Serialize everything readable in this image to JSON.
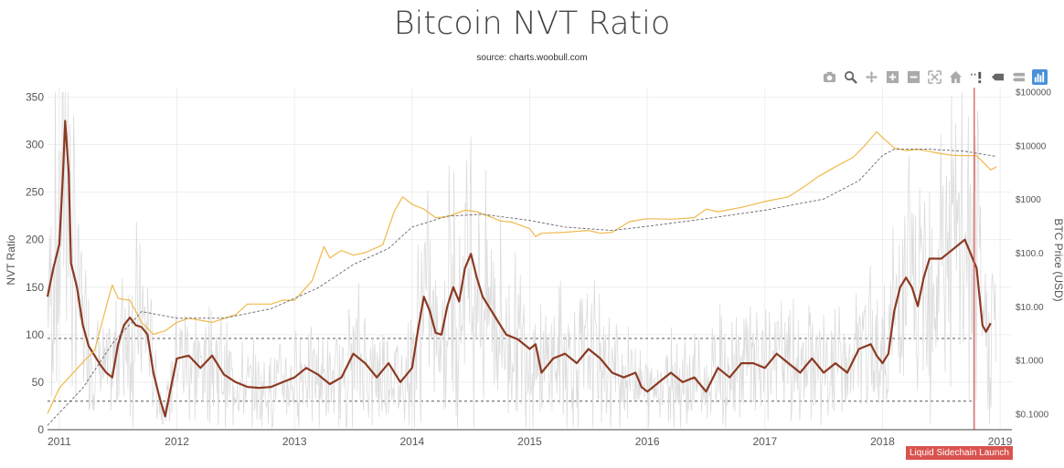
{
  "title": "Bitcoin NVT Ratio",
  "subtitle": "source: charts.woobull.com",
  "modebar": [
    "camera-icon",
    "zoom-icon",
    "pan-icon",
    "zoom-in-icon",
    "zoom-out-icon",
    "autoscale-icon",
    "home-icon",
    "spike-icon",
    "hover-closest-icon",
    "hover-compare-icon",
    "bar-chart-icon"
  ],
  "annotation": "Liquid Sidechain Launch",
  "colors": {
    "nvt": "#8b3a22",
    "nvt_raw": "#dcdcdc",
    "price": "#f0b94a",
    "price_ma": "#666666",
    "bands": "#555555",
    "annotation": "#d9534f"
  },
  "chart_data": {
    "type": "line",
    "title": "Bitcoin NVT Ratio",
    "subtitle": "source: charts.woobull.com",
    "x_ticks": [
      "2011",
      "2012",
      "2013",
      "2014",
      "2015",
      "2016",
      "2017",
      "2018",
      "2019"
    ],
    "xlim": [
      2010.9,
      2019.1
    ],
    "ylabel": "NVT Ratio",
    "ylim": [
      0,
      360
    ],
    "y_ticks": [
      0,
      50,
      100,
      150,
      200,
      250,
      300,
      350
    ],
    "y2label": "BTC Price (USD)",
    "y2_scale": "log",
    "y2lim": [
      0.05,
      120000
    ],
    "y2_ticks": [
      "$0.1000",
      "$1.000",
      "$10.00",
      "$100.0",
      "$1000",
      "$10000",
      "$100000"
    ],
    "reference_lines": [
      {
        "y": 96,
        "style": "dashed"
      },
      {
        "y": 30,
        "style": "dashed"
      }
    ],
    "vertical_marker": {
      "x": 2018.78,
      "label": "Liquid Sidechain Launch"
    },
    "series": [
      {
        "role": "nvt",
        "points": [
          [
            2010.9,
            140
          ],
          [
            2010.95,
            170
          ],
          [
            2011.0,
            195
          ],
          [
            2011.03,
            265
          ],
          [
            2011.05,
            325
          ],
          [
            2011.08,
            270
          ],
          [
            2011.1,
            175
          ],
          [
            2011.15,
            150
          ],
          [
            2011.2,
            110
          ],
          [
            2011.25,
            88
          ],
          [
            2011.3,
            78
          ],
          [
            2011.35,
            68
          ],
          [
            2011.4,
            60
          ],
          [
            2011.45,
            55
          ],
          [
            2011.5,
            90
          ],
          [
            2011.55,
            110
          ],
          [
            2011.6,
            118
          ],
          [
            2011.65,
            110
          ],
          [
            2011.7,
            108
          ],
          [
            2011.75,
            100
          ],
          [
            2011.8,
            60
          ],
          [
            2011.85,
            35
          ],
          [
            2011.9,
            14
          ],
          [
            2011.95,
            45
          ],
          [
            2012.0,
            75
          ],
          [
            2012.1,
            78
          ],
          [
            2012.2,
            65
          ],
          [
            2012.3,
            78
          ],
          [
            2012.4,
            58
          ],
          [
            2012.5,
            50
          ],
          [
            2012.6,
            45
          ],
          [
            2012.7,
            44
          ],
          [
            2012.8,
            45
          ],
          [
            2012.9,
            50
          ],
          [
            2013.0,
            55
          ],
          [
            2013.1,
            65
          ],
          [
            2013.2,
            58
          ],
          [
            2013.3,
            48
          ],
          [
            2013.4,
            55
          ],
          [
            2013.5,
            80
          ],
          [
            2013.6,
            70
          ],
          [
            2013.7,
            55
          ],
          [
            2013.8,
            70
          ],
          [
            2013.9,
            50
          ],
          [
            2014.0,
            65
          ],
          [
            2014.05,
            105
          ],
          [
            2014.1,
            140
          ],
          [
            2014.15,
            125
          ],
          [
            2014.2,
            102
          ],
          [
            2014.25,
            100
          ],
          [
            2014.3,
            130
          ],
          [
            2014.35,
            150
          ],
          [
            2014.4,
            135
          ],
          [
            2014.45,
            170
          ],
          [
            2014.5,
            185
          ],
          [
            2014.55,
            160
          ],
          [
            2014.6,
            140
          ],
          [
            2014.7,
            120
          ],
          [
            2014.75,
            110
          ],
          [
            2014.8,
            100
          ],
          [
            2014.9,
            95
          ],
          [
            2015.0,
            85
          ],
          [
            2015.05,
            90
          ],
          [
            2015.1,
            60
          ],
          [
            2015.2,
            75
          ],
          [
            2015.3,
            80
          ],
          [
            2015.4,
            70
          ],
          [
            2015.5,
            85
          ],
          [
            2015.6,
            75
          ],
          [
            2015.7,
            60
          ],
          [
            2015.8,
            55
          ],
          [
            2015.9,
            60
          ],
          [
            2015.95,
            45
          ],
          [
            2016.0,
            40
          ],
          [
            2016.1,
            50
          ],
          [
            2016.2,
            60
          ],
          [
            2016.3,
            50
          ],
          [
            2016.4,
            55
          ],
          [
            2016.5,
            40
          ],
          [
            2016.6,
            65
          ],
          [
            2016.7,
            55
          ],
          [
            2016.8,
            70
          ],
          [
            2016.9,
            70
          ],
          [
            2017.0,
            65
          ],
          [
            2017.1,
            80
          ],
          [
            2017.2,
            70
          ],
          [
            2017.3,
            60
          ],
          [
            2017.4,
            75
          ],
          [
            2017.5,
            60
          ],
          [
            2017.6,
            70
          ],
          [
            2017.7,
            60
          ],
          [
            2017.8,
            85
          ],
          [
            2017.9,
            90
          ],
          [
            2017.95,
            78
          ],
          [
            2018.0,
            70
          ],
          [
            2018.05,
            80
          ],
          [
            2018.1,
            125
          ],
          [
            2018.15,
            150
          ],
          [
            2018.2,
            160
          ],
          [
            2018.25,
            150
          ],
          [
            2018.3,
            130
          ],
          [
            2018.35,
            160
          ],
          [
            2018.4,
            180
          ],
          [
            2018.5,
            180
          ],
          [
            2018.55,
            185
          ],
          [
            2018.6,
            190
          ],
          [
            2018.65,
            195
          ],
          [
            2018.7,
            200
          ],
          [
            2018.75,
            185
          ],
          [
            2018.8,
            170
          ],
          [
            2018.85,
            110
          ],
          [
            2018.88,
            103
          ],
          [
            2018.92,
            112
          ]
        ]
      },
      {
        "role": "price",
        "points": [
          [
            2010.9,
            0.1
          ],
          [
            2011.0,
            0.3
          ],
          [
            2011.2,
            0.9
          ],
          [
            2011.3,
            1.5
          ],
          [
            2011.4,
            10
          ],
          [
            2011.45,
            25
          ],
          [
            2011.5,
            14
          ],
          [
            2011.6,
            13
          ],
          [
            2011.7,
            5
          ],
          [
            2011.8,
            3
          ],
          [
            2011.9,
            3.5
          ],
          [
            2012.0,
            5
          ],
          [
            2012.1,
            6
          ],
          [
            2012.3,
            5
          ],
          [
            2012.5,
            7
          ],
          [
            2012.6,
            11
          ],
          [
            2012.8,
            11
          ],
          [
            2012.9,
            13
          ],
          [
            2013.0,
            13
          ],
          [
            2013.15,
            30
          ],
          [
            2013.25,
            130
          ],
          [
            2013.3,
            80
          ],
          [
            2013.4,
            110
          ],
          [
            2013.5,
            90
          ],
          [
            2013.6,
            100
          ],
          [
            2013.75,
            140
          ],
          [
            2013.85,
            600
          ],
          [
            2013.92,
            1100
          ],
          [
            2014.0,
            800
          ],
          [
            2014.1,
            650
          ],
          [
            2014.2,
            450
          ],
          [
            2014.3,
            470
          ],
          [
            2014.45,
            620
          ],
          [
            2014.55,
            580
          ],
          [
            2014.65,
            480
          ],
          [
            2014.75,
            390
          ],
          [
            2014.85,
            370
          ],
          [
            2015.0,
            280
          ],
          [
            2015.05,
            200
          ],
          [
            2015.1,
            230
          ],
          [
            2015.3,
            240
          ],
          [
            2015.5,
            260
          ],
          [
            2015.6,
            230
          ],
          [
            2015.7,
            240
          ],
          [
            2015.85,
            380
          ],
          [
            2016.0,
            430
          ],
          [
            2016.2,
            420
          ],
          [
            2016.4,
            450
          ],
          [
            2016.5,
            650
          ],
          [
            2016.6,
            580
          ],
          [
            2016.8,
            700
          ],
          [
            2017.0,
            900
          ],
          [
            2017.2,
            1100
          ],
          [
            2017.35,
            1800
          ],
          [
            2017.45,
            2600
          ],
          [
            2017.6,
            4000
          ],
          [
            2017.75,
            6000
          ],
          [
            2017.85,
            10000
          ],
          [
            2017.95,
            18000
          ],
          [
            2018.0,
            14000
          ],
          [
            2018.1,
            9000
          ],
          [
            2018.2,
            8000
          ],
          [
            2018.3,
            8500
          ],
          [
            2018.5,
            7000
          ],
          [
            2018.6,
            6500
          ],
          [
            2018.8,
            6400
          ],
          [
            2018.85,
            5000
          ],
          [
            2018.92,
            3500
          ],
          [
            2018.97,
            4000
          ]
        ]
      },
      {
        "role": "price_ma",
        "points": [
          [
            2010.9,
            0.06
          ],
          [
            2011.2,
            0.3
          ],
          [
            2011.45,
            2
          ],
          [
            2011.7,
            8
          ],
          [
            2012.0,
            6
          ],
          [
            2012.4,
            6
          ],
          [
            2012.8,
            9
          ],
          [
            2013.2,
            22
          ],
          [
            2013.5,
            60
          ],
          [
            2013.8,
            120
          ],
          [
            2014.0,
            300
          ],
          [
            2014.3,
            480
          ],
          [
            2014.6,
            520
          ],
          [
            2015.0,
            400
          ],
          [
            2015.3,
            300
          ],
          [
            2015.7,
            260
          ],
          [
            2016.0,
            310
          ],
          [
            2016.5,
            430
          ],
          [
            2017.0,
            620
          ],
          [
            2017.5,
            1000
          ],
          [
            2017.8,
            2200
          ],
          [
            2018.0,
            6500
          ],
          [
            2018.1,
            8500
          ],
          [
            2018.4,
            8500
          ],
          [
            2018.7,
            7800
          ],
          [
            2018.97,
            6200
          ]
        ]
      }
    ]
  }
}
